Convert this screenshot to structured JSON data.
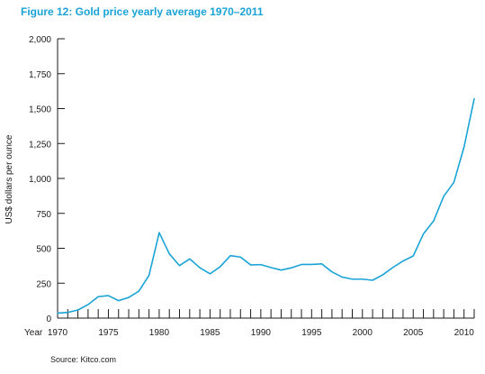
{
  "chart_data": {
    "type": "line",
    "title": "Figure 12: Gold price yearly average 1970–2011",
    "xlabel": "Year",
    "ylabel": "US$ dollars per ounce",
    "source": "Source: Kitco.com",
    "xlim": [
      1970,
      2011
    ],
    "ylim": [
      0,
      2000
    ],
    "y_ticks": [
      0,
      250,
      500,
      750,
      1000,
      1250,
      1500,
      1750,
      2000
    ],
    "y_tick_labels": [
      "0",
      "250",
      "500",
      "750",
      "1,000",
      "1,250",
      "1,500",
      "1,750",
      "2,000"
    ],
    "x_tick_labels": [
      "1970",
      "1975",
      "1980",
      "1985",
      "1990",
      "1995",
      "2000",
      "2005",
      "2010"
    ],
    "x_tick_values": [
      1970,
      1975,
      1980,
      1985,
      1990,
      1995,
      2000,
      2005,
      2010
    ],
    "grid": false,
    "line_color": "#1aa3d6",
    "series": [
      {
        "x": [
          1970,
          1971,
          1972,
          1973,
          1974,
          1975,
          1976,
          1977,
          1978,
          1979,
          1980,
          1981,
          1982,
          1983,
          1984,
          1985,
          1986,
          1987,
          1988,
          1989,
          1990,
          1991,
          1992,
          1993,
          1994,
          1995,
          1996,
          1997,
          1998,
          1999,
          2000,
          2001,
          2002,
          2003,
          2004,
          2005,
          2006,
          2007,
          2008,
          2009,
          2010,
          2011
        ],
        "values": [
          36,
          41,
          58,
          97,
          154,
          161,
          125,
          148,
          193,
          307,
          612,
          460,
          376,
          424,
          361,
          317,
          368,
          447,
          437,
          381,
          383,
          362,
          344,
          360,
          384,
          384,
          388,
          331,
          294,
          279,
          279,
          271,
          310,
          363,
          409,
          445,
          603,
          695,
          872,
          972,
          1225,
          1570
        ]
      }
    ]
  }
}
